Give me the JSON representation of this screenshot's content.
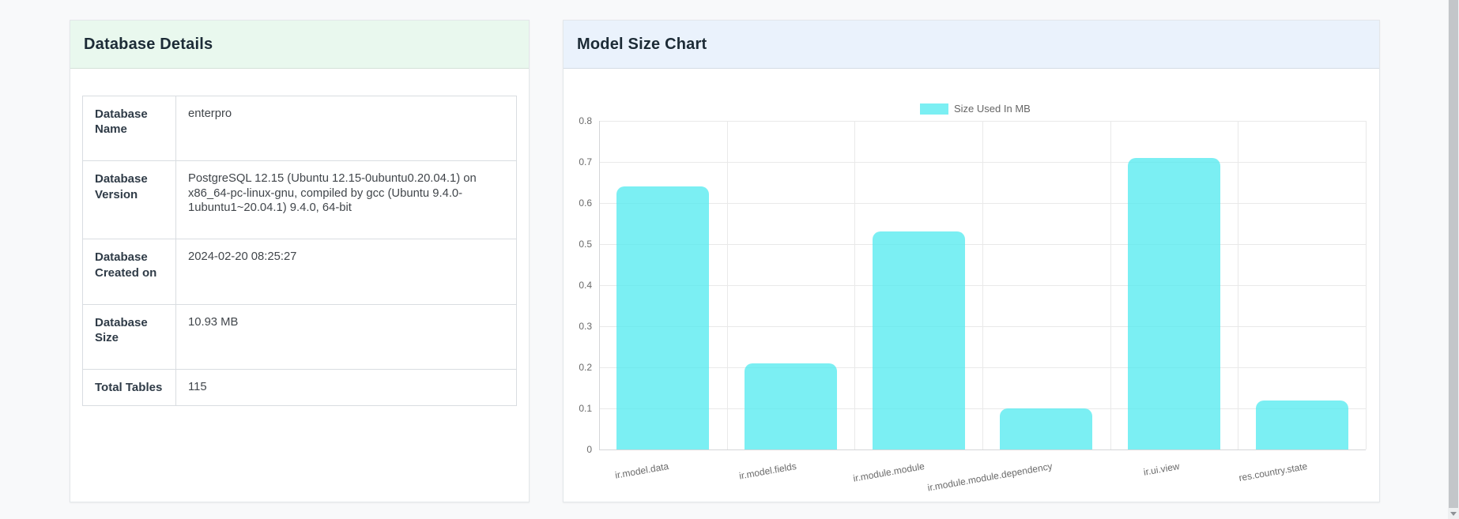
{
  "left_card": {
    "title": "Database Details",
    "rows": [
      {
        "label": "Database Name",
        "value": "enterpro"
      },
      {
        "label": "Database Version",
        "value": "PostgreSQL 12.15 (Ubuntu 12.15-0ubuntu0.20.04.1) on x86_64-pc-linux-gnu, compiled by gcc (Ubuntu 9.4.0-1ubuntu1~20.04.1) 9.4.0, 64-bit"
      },
      {
        "label": "Database Created on",
        "value": "2024-02-20 08:25:27"
      },
      {
        "label": "Database Size",
        "value": "10.93 MB"
      },
      {
        "label": "Total Tables",
        "value": "115"
      }
    ]
  },
  "right_card": {
    "title": "Model Size Chart"
  },
  "chart_data": {
    "type": "bar",
    "title": "Model Size Chart",
    "legend": "Size Used In MB",
    "legend_position": "top-center",
    "categories": [
      "ir.model.data",
      "ir.model.fields",
      "ir.module.module",
      "ir.module.module.dependency",
      "ir.ui.view",
      "res.country.state"
    ],
    "values": [
      0.64,
      0.21,
      0.53,
      0.1,
      0.71,
      0.12
    ],
    "xlabel": "",
    "ylabel": "",
    "ylim": [
      0,
      0.8
    ],
    "yticks": [
      "0",
      "0.1",
      "0.2",
      "0.3",
      "0.4",
      "0.5",
      "0.6",
      "0.7",
      "0.8"
    ],
    "grid": "on",
    "bar_color": "rgba(86,235,240,0.78)"
  },
  "colors": {
    "left_header_bg": "#e9f8ee",
    "right_header_bg": "#eaf2fc",
    "bar": "rgba(86,235,240,0.78)",
    "page_bg": "#f8f9fa"
  }
}
